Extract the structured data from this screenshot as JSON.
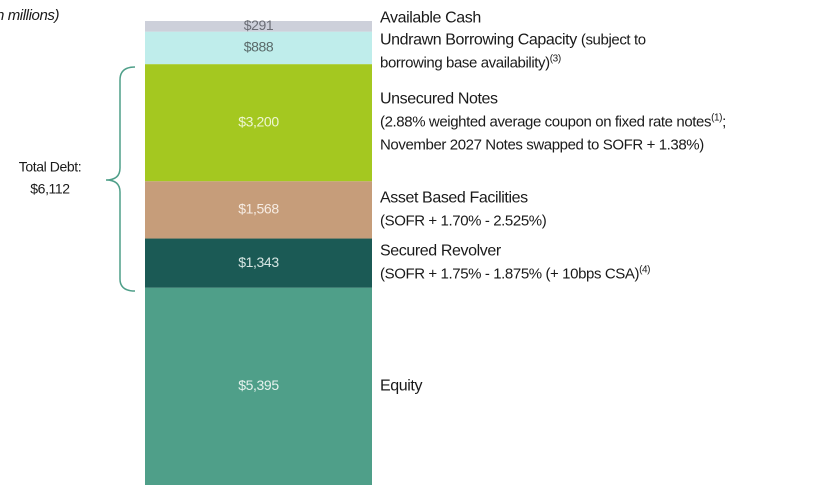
{
  "chart_data": {
    "type": "stacked_bar",
    "title": "n millions)",
    "series": [
      {
        "name": "Equity",
        "color": "#4f9f89",
        "label_color": "#e6f2ee",
        "values": [
          5395
        ],
        "value_labels": [
          "$5,395"
        ],
        "details": []
      },
      {
        "name": "Secured Revolver",
        "color": "#1b5a55",
        "label_color": "#d6e6e3",
        "values": [
          1343
        ],
        "value_labels": [
          "$1,343"
        ],
        "details": [
          [
            "(SOFR + 1.75% - 1.875% (+ 10bps CSA)",
            {
              "sup": "(4)"
            }
          ]
        ]
      },
      {
        "name": "Asset Based Facilities",
        "color": "#c69d7a",
        "label_color": "#f6ece3",
        "values": [
          1568
        ],
        "value_labels": [
          "$1,568"
        ],
        "details": [
          [
            "(SOFR + 1.70% - 2.525%)"
          ]
        ]
      },
      {
        "name": "Unsecured Notes",
        "color": "#a4c820",
        "label_color": "#eef6d2",
        "values": [
          3200
        ],
        "value_labels": [
          "$3,200"
        ],
        "details": [
          [
            "(2.88% weighted average coupon on fixed rate notes",
            {
              "sup": "(1)"
            },
            ";"
          ],
          [
            "November 2027 Notes swapped to SOFR + 1.38%)"
          ]
        ]
      },
      {
        "name": "Undrawn Borrowing Capacity",
        "color": "#bfedeb",
        "label_color": "#5a6a6a",
        "values": [
          888
        ],
        "value_labels": [
          "$888"
        ],
        "details": [
          [
            "(subject to"
          ],
          [
            "borrowing base availability)",
            {
              "sup": "(3)"
            }
          ]
        ],
        "detail_inline": true
      },
      {
        "name": "Available Cash",
        "color": "#cdd0da",
        "label_color": "#6a6d75",
        "values": [
          291
        ],
        "value_labels": [
          "$291"
        ],
        "details": []
      }
    ],
    "annotations": [
      "Total Debt:",
      "$6,112"
    ]
  }
}
